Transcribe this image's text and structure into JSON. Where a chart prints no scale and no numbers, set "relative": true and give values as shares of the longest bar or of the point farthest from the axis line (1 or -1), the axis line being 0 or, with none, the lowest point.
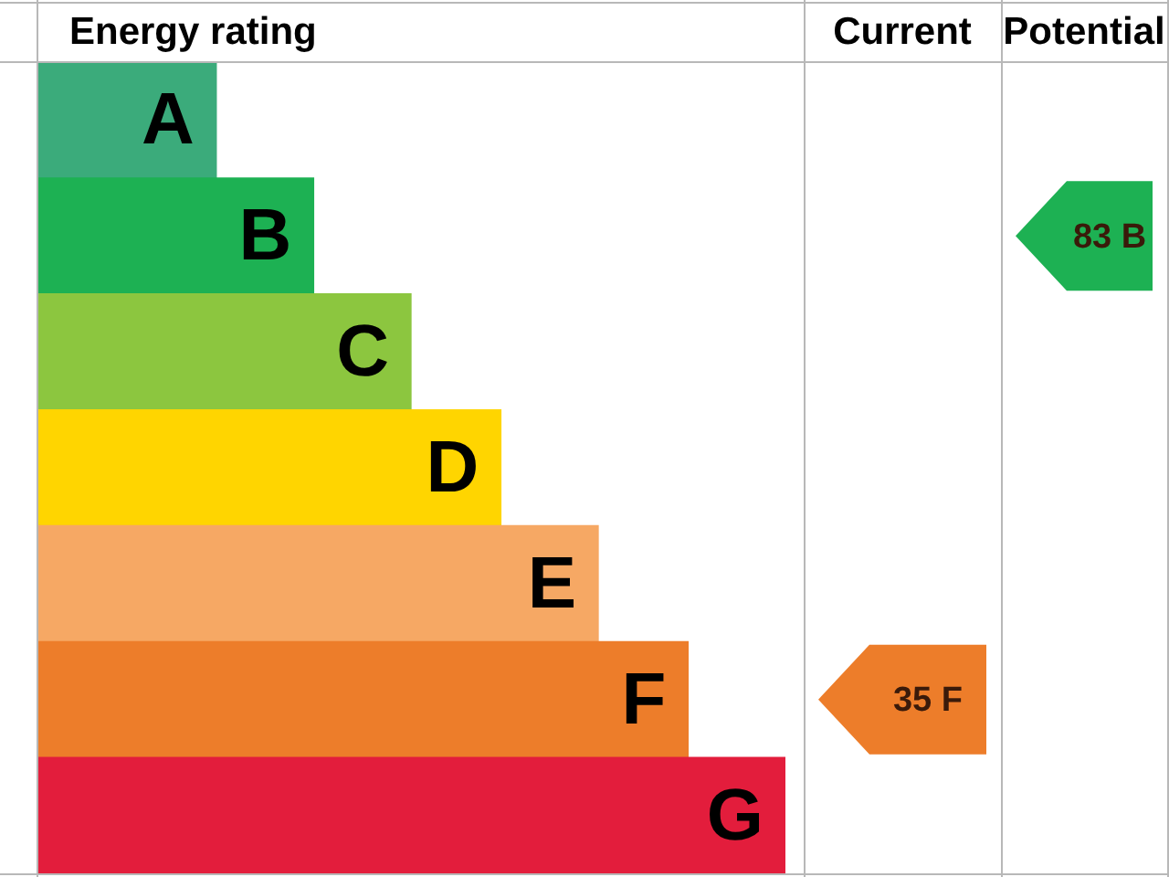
{
  "chart_data": {
    "type": "bar",
    "orientation": "horizontal",
    "relative": true,
    "title": "Energy rating",
    "categories": [
      "A",
      "B",
      "C",
      "D",
      "E",
      "F",
      "G"
    ],
    "values": [
      0.24,
      0.37,
      0.5,
      0.62,
      0.75,
      0.87,
      1
    ],
    "colors": [
      "#3bab7b",
      "#1db153",
      "#8cc63f",
      "#ffd500",
      "#f6a864",
      "#ed7d2a",
      "#e31d3c"
    ],
    "annotations": [
      "Current",
      "Potential",
      "35 F",
      "83 B"
    ],
    "legend": false
  }
}
